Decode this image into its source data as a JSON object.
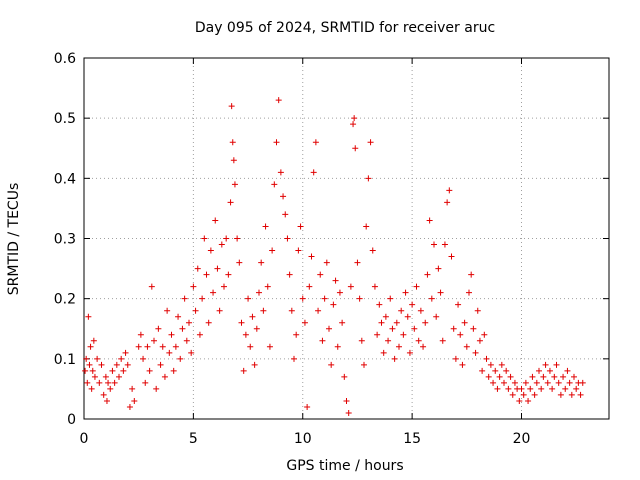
{
  "chart_data": {
    "type": "scatter",
    "title": "Day 095 of 2024, SRMTID for receiver aruc",
    "xlabel": "GPS time / hours",
    "ylabel": "SRMTID / TECUs",
    "xlim": [
      0,
      24
    ],
    "ylim": [
      0,
      0.6
    ],
    "xticks": [
      0,
      5,
      10,
      15,
      20
    ],
    "xtick_labels": [
      "0",
      "5",
      "10",
      "15",
      "20"
    ],
    "yticks": [
      0,
      0.1,
      0.2,
      0.3,
      0.4,
      0.5,
      0.6
    ],
    "ytick_labels": [
      "0",
      "0.1",
      "0.2",
      "0.3",
      "0.4",
      "0.5",
      "0.6"
    ],
    "grid": true,
    "marker": "+",
    "color": "#e00000",
    "series": [
      {
        "name": "SRMTID",
        "points": [
          [
            0.05,
            0.08
          ],
          [
            0.1,
            0.1
          ],
          [
            0.15,
            0.06
          ],
          [
            0.2,
            0.17
          ],
          [
            0.25,
            0.09
          ],
          [
            0.3,
            0.12
          ],
          [
            0.35,
            0.05
          ],
          [
            0.4,
            0.08
          ],
          [
            0.45,
            0.13
          ],
          [
            0.5,
            0.07
          ],
          [
            0.6,
            0.1
          ],
          [
            0.7,
            0.06
          ],
          [
            0.8,
            0.09
          ],
          [
            0.9,
            0.04
          ],
          [
            1.0,
            0.07
          ],
          [
            1.05,
            0.03
          ],
          [
            1.1,
            0.06
          ],
          [
            1.2,
            0.05
          ],
          [
            1.3,
            0.08
          ],
          [
            1.4,
            0.06
          ],
          [
            1.5,
            0.09
          ],
          [
            1.6,
            0.07
          ],
          [
            1.7,
            0.1
          ],
          [
            1.8,
            0.08
          ],
          [
            1.9,
            0.11
          ],
          [
            2.0,
            0.09
          ],
          [
            2.1,
            0.02
          ],
          [
            2.2,
            0.05
          ],
          [
            2.3,
            0.03
          ],
          [
            2.5,
            0.12
          ],
          [
            2.6,
            0.14
          ],
          [
            2.7,
            0.1
          ],
          [
            2.8,
            0.06
          ],
          [
            2.9,
            0.12
          ],
          [
            3.0,
            0.08
          ],
          [
            3.1,
            0.22
          ],
          [
            3.2,
            0.13
          ],
          [
            3.3,
            0.05
          ],
          [
            3.4,
            0.15
          ],
          [
            3.5,
            0.09
          ],
          [
            3.6,
            0.12
          ],
          [
            3.7,
            0.07
          ],
          [
            3.8,
            0.18
          ],
          [
            3.9,
            0.11
          ],
          [
            4.0,
            0.14
          ],
          [
            4.1,
            0.08
          ],
          [
            4.2,
            0.12
          ],
          [
            4.3,
            0.17
          ],
          [
            4.4,
            0.1
          ],
          [
            4.5,
            0.15
          ],
          [
            4.6,
            0.2
          ],
          [
            4.7,
            0.13
          ],
          [
            4.8,
            0.16
          ],
          [
            4.9,
            0.11
          ],
          [
            5.0,
            0.22
          ],
          [
            5.1,
            0.18
          ],
          [
            5.2,
            0.25
          ],
          [
            5.3,
            0.14
          ],
          [
            5.4,
            0.2
          ],
          [
            5.5,
            0.3
          ],
          [
            5.6,
            0.24
          ],
          [
            5.7,
            0.16
          ],
          [
            5.8,
            0.28
          ],
          [
            5.9,
            0.21
          ],
          [
            6.0,
            0.33
          ],
          [
            6.1,
            0.25
          ],
          [
            6.2,
            0.18
          ],
          [
            6.3,
            0.29
          ],
          [
            6.4,
            0.22
          ],
          [
            6.5,
            0.3
          ],
          [
            6.6,
            0.24
          ],
          [
            6.7,
            0.36
          ],
          [
            6.75,
            0.52
          ],
          [
            6.8,
            0.46
          ],
          [
            6.85,
            0.43
          ],
          [
            6.9,
            0.39
          ],
          [
            7.0,
            0.3
          ],
          [
            7.1,
            0.26
          ],
          [
            7.2,
            0.16
          ],
          [
            7.3,
            0.08
          ],
          [
            7.4,
            0.14
          ],
          [
            7.5,
            0.2
          ],
          [
            7.6,
            0.12
          ],
          [
            7.7,
            0.17
          ],
          [
            7.8,
            0.09
          ],
          [
            7.9,
            0.15
          ],
          [
            8.0,
            0.21
          ],
          [
            8.1,
            0.26
          ],
          [
            8.2,
            0.18
          ],
          [
            8.3,
            0.32
          ],
          [
            8.4,
            0.22
          ],
          [
            8.5,
            0.12
          ],
          [
            8.6,
            0.28
          ],
          [
            8.7,
            0.39
          ],
          [
            8.8,
            0.46
          ],
          [
            8.9,
            0.53
          ],
          [
            9.0,
            0.41
          ],
          [
            9.1,
            0.37
          ],
          [
            9.2,
            0.34
          ],
          [
            9.3,
            0.3
          ],
          [
            9.4,
            0.24
          ],
          [
            9.5,
            0.18
          ],
          [
            9.6,
            0.1
          ],
          [
            9.7,
            0.14
          ],
          [
            9.8,
            0.28
          ],
          [
            9.9,
            0.32
          ],
          [
            10.0,
            0.2
          ],
          [
            10.1,
            0.16
          ],
          [
            10.2,
            0.02
          ],
          [
            10.3,
            0.22
          ],
          [
            10.4,
            0.27
          ],
          [
            10.5,
            0.41
          ],
          [
            10.6,
            0.46
          ],
          [
            10.7,
            0.18
          ],
          [
            10.8,
            0.24
          ],
          [
            10.9,
            0.13
          ],
          [
            11.0,
            0.2
          ],
          [
            11.1,
            0.26
          ],
          [
            11.2,
            0.15
          ],
          [
            11.3,
            0.09
          ],
          [
            11.4,
            0.19
          ],
          [
            11.5,
            0.23
          ],
          [
            11.6,
            0.12
          ],
          [
            11.7,
            0.21
          ],
          [
            11.8,
            0.16
          ],
          [
            11.9,
            0.07
          ],
          [
            12.0,
            0.03
          ],
          [
            12.1,
            0.01
          ],
          [
            12.2,
            0.22
          ],
          [
            12.3,
            0.49
          ],
          [
            12.35,
            0.5
          ],
          [
            12.4,
            0.45
          ],
          [
            12.5,
            0.26
          ],
          [
            12.6,
            0.2
          ],
          [
            12.7,
            0.13
          ],
          [
            12.8,
            0.09
          ],
          [
            12.9,
            0.32
          ],
          [
            13.0,
            0.4
          ],
          [
            13.1,
            0.46
          ],
          [
            13.2,
            0.28
          ],
          [
            13.3,
            0.22
          ],
          [
            13.4,
            0.14
          ],
          [
            13.5,
            0.19
          ],
          [
            13.6,
            0.16
          ],
          [
            13.7,
            0.11
          ],
          [
            13.8,
            0.17
          ],
          [
            13.9,
            0.13
          ],
          [
            14.0,
            0.2
          ],
          [
            14.1,
            0.15
          ],
          [
            14.2,
            0.1
          ],
          [
            14.3,
            0.16
          ],
          [
            14.4,
            0.12
          ],
          [
            14.5,
            0.18
          ],
          [
            14.6,
            0.14
          ],
          [
            14.7,
            0.21
          ],
          [
            14.8,
            0.17
          ],
          [
            14.9,
            0.11
          ],
          [
            15.0,
            0.19
          ],
          [
            15.1,
            0.15
          ],
          [
            15.2,
            0.22
          ],
          [
            15.3,
            0.13
          ],
          [
            15.4,
            0.18
          ],
          [
            15.5,
            0.12
          ],
          [
            15.6,
            0.16
          ],
          [
            15.7,
            0.24
          ],
          [
            15.8,
            0.33
          ],
          [
            15.9,
            0.2
          ],
          [
            16.0,
            0.29
          ],
          [
            16.1,
            0.17
          ],
          [
            16.2,
            0.25
          ],
          [
            16.3,
            0.21
          ],
          [
            16.4,
            0.13
          ],
          [
            16.5,
            0.29
          ],
          [
            16.6,
            0.36
          ],
          [
            16.7,
            0.38
          ],
          [
            16.8,
            0.27
          ],
          [
            16.9,
            0.15
          ],
          [
            17.0,
            0.1
          ],
          [
            17.1,
            0.19
          ],
          [
            17.2,
            0.14
          ],
          [
            17.3,
            0.09
          ],
          [
            17.4,
            0.16
          ],
          [
            17.5,
            0.12
          ],
          [
            17.6,
            0.21
          ],
          [
            17.7,
            0.24
          ],
          [
            17.8,
            0.15
          ],
          [
            17.9,
            0.11
          ],
          [
            18.0,
            0.18
          ],
          [
            18.1,
            0.13
          ],
          [
            18.2,
            0.08
          ],
          [
            18.3,
            0.14
          ],
          [
            18.4,
            0.1
          ],
          [
            18.5,
            0.07
          ],
          [
            18.6,
            0.09
          ],
          [
            18.7,
            0.06
          ],
          [
            18.8,
            0.08
          ],
          [
            18.9,
            0.05
          ],
          [
            19.0,
            0.07
          ],
          [
            19.1,
            0.09
          ],
          [
            19.2,
            0.06
          ],
          [
            19.3,
            0.08
          ],
          [
            19.4,
            0.05
          ],
          [
            19.5,
            0.07
          ],
          [
            19.6,
            0.04
          ],
          [
            19.7,
            0.06
          ],
          [
            19.8,
            0.05
          ],
          [
            19.9,
            0.03
          ],
          [
            20.0,
            0.05
          ],
          [
            20.1,
            0.04
          ],
          [
            20.2,
            0.06
          ],
          [
            20.3,
            0.03
          ],
          [
            20.4,
            0.05
          ],
          [
            20.5,
            0.07
          ],
          [
            20.6,
            0.04
          ],
          [
            20.7,
            0.06
          ],
          [
            20.8,
            0.08
          ],
          [
            20.9,
            0.05
          ],
          [
            21.0,
            0.07
          ],
          [
            21.1,
            0.09
          ],
          [
            21.2,
            0.06
          ],
          [
            21.3,
            0.08
          ],
          [
            21.4,
            0.05
          ],
          [
            21.5,
            0.07
          ],
          [
            21.6,
            0.09
          ],
          [
            21.7,
            0.06
          ],
          [
            21.8,
            0.04
          ],
          [
            21.9,
            0.07
          ],
          [
            22.0,
            0.05
          ],
          [
            22.1,
            0.08
          ],
          [
            22.2,
            0.06
          ],
          [
            22.3,
            0.04
          ],
          [
            22.4,
            0.07
          ],
          [
            22.5,
            0.05
          ],
          [
            22.6,
            0.06
          ],
          [
            22.7,
            0.04
          ],
          [
            22.8,
            0.06
          ]
        ]
      }
    ]
  }
}
